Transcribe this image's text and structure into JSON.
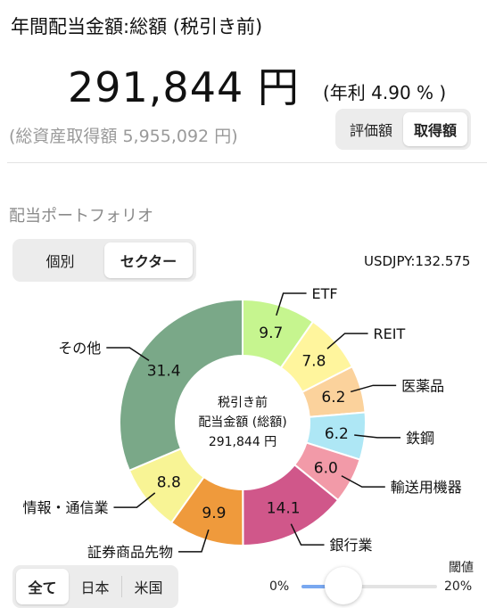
{
  "header": {
    "title": "年間配当金額:総額 (税引き前)",
    "amount": "291,844 円",
    "rate": "(年利 4.90 % )",
    "total_assets": "(総資産取得額 5,955,092 円)"
  },
  "value_toggle": {
    "options": [
      "評価額",
      "取得額"
    ],
    "selected": "取得額"
  },
  "portfolio": {
    "title": "配当ポートフォリオ",
    "view_toggle": {
      "options": [
        "個別",
        "セクター"
      ],
      "selected": "セクター"
    },
    "fx_rate": "USDJPY:132.575"
  },
  "chart_center": {
    "line1": "税引き前",
    "line2": "配当金額 (総額)",
    "line3": "291,844 円"
  },
  "chart_data": {
    "type": "pie",
    "donut": true,
    "slices": [
      {
        "name": "ETF",
        "value": 9.7,
        "label": "9.7",
        "color": "#c6f58f"
      },
      {
        "name": "REIT",
        "value": 7.8,
        "label": "7.8",
        "color": "#fff59d"
      },
      {
        "name": "医薬品",
        "value": 6.2,
        "label": "6.2",
        "color": "#fbd29c"
      },
      {
        "name": "鉄鋼",
        "value": 6.2,
        "label": "6.2",
        "color": "#aee7f5"
      },
      {
        "name": "輸送用機器",
        "value": 6.0,
        "label": "6.0",
        "color": "#f29aa8"
      },
      {
        "name": "銀行業",
        "value": 14.1,
        "label": "14.1",
        "color": "#d0578a"
      },
      {
        "name": "証券商品先物",
        "value": 9.9,
        "label": "9.9",
        "color": "#ef9a3c"
      },
      {
        "name": "情報・通信業",
        "value": 8.8,
        "label": "8.8",
        "color": "#f8f495"
      },
      {
        "name": "その他",
        "value": 31.4,
        "label": "31.4",
        "color": "#7aa888"
      }
    ]
  },
  "filter_toggle": {
    "options": [
      "全て",
      "日本",
      "米国"
    ],
    "selected": "全て"
  },
  "threshold": {
    "label": "閾値",
    "min_label": "0%",
    "max_label": "20%",
    "value_fraction": 0.27
  }
}
